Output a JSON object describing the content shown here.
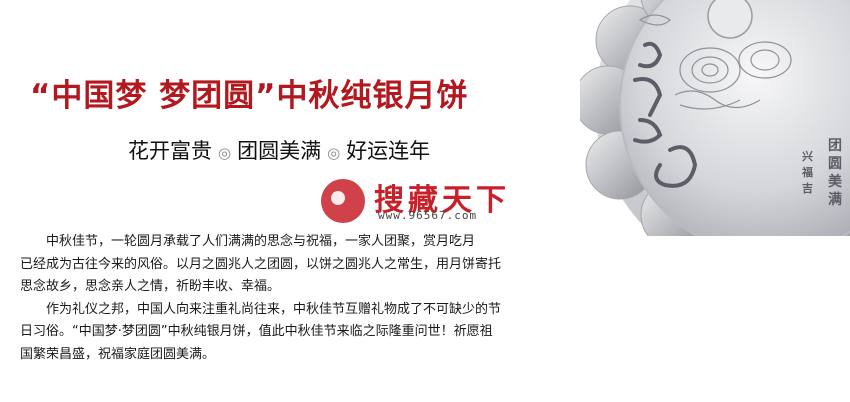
{
  "title": "“中国梦 梦团圆”中秋纯银月饼",
  "subtitle": {
    "parts": [
      "花开富贵",
      "团圆美满",
      "好运连年"
    ],
    "separator": "◎"
  },
  "watermark": {
    "brand": "搜藏天下",
    "url": "www.96567.com",
    "color": "#c8202a"
  },
  "coin_engraving": {
    "left_calligraphy": "里芙婵娟",
    "right_calligraphy": "团圆美满",
    "small_text": "兴福 吉"
  },
  "body": {
    "lines": [
      "中秋佳节，一轮圆月承载了人们满满的思念与祝福，一家人团聚，赏月吃月",
      "已经成为古往今来的风俗。以月之圆兆人之团圆，以饼之圆兆人之常生，用月饼寄托",
      "思念故乡，思念亲人之情，祈盼丰收、幸福。",
      "作为礼仪之邦，中国人向来注重礼尚往来，中秋佳节互赠礼物成了不可缺少的节",
      "日习俗。“中国梦·梦团圆”中秋纯银月饼，值此中秋佳节来临之际隆重问世！祈愿祖",
      "国繁荣昌盛，祝福家庭团圆美满。"
    ]
  },
  "colors": {
    "title": "#b3181f",
    "silver": "#c9cbd0"
  }
}
